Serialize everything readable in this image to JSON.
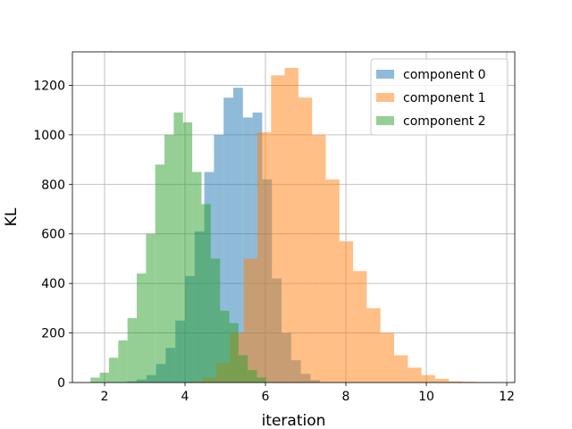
{
  "chart_data": {
    "type": "histogram",
    "title": "",
    "xlabel": "iteration",
    "ylabel": "KL",
    "xlim": [
      1.2,
      12.2
    ],
    "ylim": [
      0,
      1335
    ],
    "x_ticks": [
      2,
      4,
      6,
      8,
      10,
      12
    ],
    "y_ticks": [
      0,
      200,
      400,
      600,
      800,
      1000,
      1200
    ],
    "grid": true,
    "legend_position": "top-right",
    "series": [
      {
        "name": "component 0",
        "color": "#1f77b4",
        "opacity": 0.5,
        "bin_edges": [
          2.56,
          2.8,
          3.04,
          3.28,
          3.52,
          3.76,
          4.0,
          4.24,
          4.48,
          4.72,
          4.96,
          5.2,
          5.44,
          5.68,
          5.92,
          6.16,
          6.4,
          6.64,
          6.88,
          7.12,
          7.36
        ],
        "counts": [
          5,
          12,
          30,
          75,
          140,
          250,
          430,
          610,
          850,
          1000,
          1150,
          1190,
          1070,
          1090,
          820,
          420,
          200,
          90,
          35,
          10
        ]
      },
      {
        "name": "component 1",
        "color": "#ff7f0e",
        "opacity": 0.5,
        "bin_edges": [
          4.1,
          4.44,
          4.78,
          5.12,
          5.46,
          5.8,
          6.14,
          6.48,
          6.82,
          7.16,
          7.5,
          7.84,
          8.18,
          8.52,
          8.86,
          9.2,
          9.54,
          9.88,
          10.22,
          10.56,
          10.9,
          11.24,
          11.58,
          11.92
        ],
        "counts": [
          5,
          20,
          80,
          200,
          500,
          1010,
          1240,
          1270,
          1150,
          1000,
          820,
          570,
          450,
          300,
          200,
          110,
          60,
          30,
          15,
          5,
          3,
          2,
          1
        ]
      },
      {
        "name": "component 2",
        "color": "#2ca02c",
        "opacity": 0.5,
        "bin_edges": [
          1.65,
          1.88,
          2.11,
          2.34,
          2.57,
          2.8,
          3.03,
          3.26,
          3.49,
          3.72,
          3.95,
          4.18,
          4.41,
          4.64,
          4.87,
          5.1,
          5.33,
          5.56,
          5.79,
          6.02
        ],
        "counts": [
          20,
          40,
          100,
          170,
          260,
          440,
          600,
          880,
          1000,
          1090,
          1050,
          850,
          720,
          500,
          290,
          240,
          110,
          50,
          20
        ]
      }
    ]
  }
}
